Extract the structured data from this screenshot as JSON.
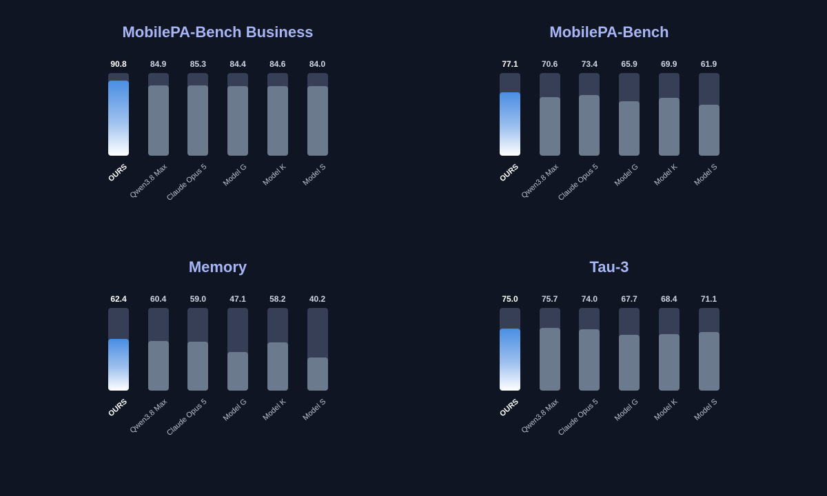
{
  "colors": {
    "background": "#0f1522",
    "title": "#a9b6f5",
    "track": "#373f57",
    "bar": "#6b7a8d",
    "highlight_top": "#4a8ee2",
    "highlight_bottom": "#ffffff"
  },
  "chart_data": [
    {
      "type": "bar",
      "title": "MobilePA-Bench Business",
      "categories": [
        "OURS",
        "Qwen3.8 Max",
        "Claude Opus 5",
        "Model G",
        "Model K",
        "Model S"
      ],
      "values": [
        90.8,
        84.9,
        85.3,
        84.4,
        84.6,
        84.0
      ],
      "ylim": [
        0,
        100
      ],
      "highlight": "OURS"
    },
    {
      "type": "bar",
      "title": "MobilePA-Bench",
      "categories": [
        "OURS",
        "Qwen3.8 Max",
        "Claude Opus 5",
        "Model G",
        "Model K",
        "Model S"
      ],
      "values": [
        77.1,
        70.6,
        73.4,
        65.9,
        69.9,
        61.9
      ],
      "ylim": [
        0,
        100
      ],
      "highlight": "OURS"
    },
    {
      "type": "bar",
      "title": "Memory",
      "categories": [
        "OURS",
        "Qwen3.8 Max",
        "Claude Opus 5",
        "Model G",
        "Model K",
        "Model S"
      ],
      "values": [
        62.4,
        60.4,
        59.0,
        47.1,
        58.2,
        40.2
      ],
      "ylim": [
        0,
        100
      ],
      "highlight": "OURS"
    },
    {
      "type": "bar",
      "title": "Tau-3",
      "categories": [
        "OURS",
        "Qwen3.8 Max",
        "Claude Opus 5",
        "Model G",
        "Model K",
        "Model S"
      ],
      "values": [
        75.0,
        75.7,
        74.0,
        67.7,
        68.4,
        71.1
      ],
      "ylim": [
        0,
        100
      ],
      "highlight": "OURS"
    }
  ]
}
